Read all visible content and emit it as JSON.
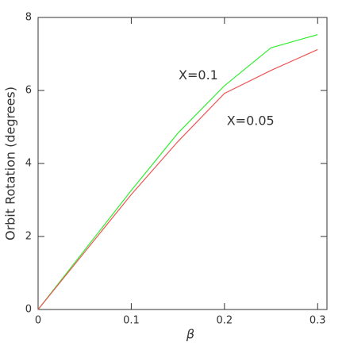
{
  "chart_data": {
    "type": "line",
    "x": [
      0,
      0.1,
      0.15,
      0.2,
      0.25,
      0.3
    ],
    "series": [
      {
        "name": "X=0.1",
        "color": "#33ee33",
        "values": [
          0,
          3.26,
          4.83,
          6.13,
          7.17,
          7.53
        ]
      },
      {
        "name": "X=0.05",
        "color": "#ee5555",
        "values": [
          0,
          3.15,
          4.6,
          5.92,
          6.55,
          7.12
        ]
      }
    ],
    "annotations": [
      {
        "text": "X=0.1",
        "x": 0.172,
        "y": 6.4
      },
      {
        "text": "X=0.05",
        "x": 0.228,
        "y": 5.15
      }
    ],
    "xlabel": "β",
    "ylabel": "Orbit Rotation (degrees)",
    "xlim": [
      0,
      0.31
    ],
    "ylim": [
      0,
      8
    ],
    "xticks": [
      0,
      0.1,
      0.2,
      0.3
    ],
    "yticks": [
      0,
      2,
      4,
      6,
      8
    ]
  }
}
